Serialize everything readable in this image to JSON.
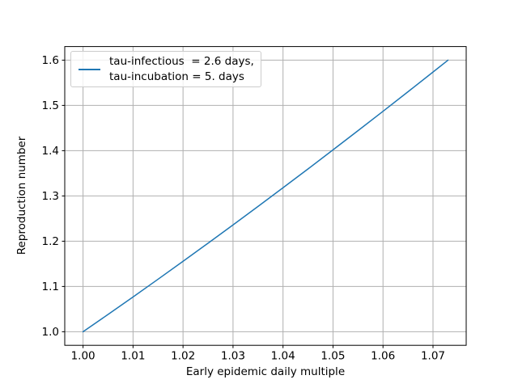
{
  "chart_data": {
    "type": "line",
    "title": "",
    "xlabel": "Early epidemic daily multiple",
    "ylabel": "Reproduction number",
    "xlim": [
      0.99634,
      1.07664
    ],
    "ylim": [
      0.97,
      1.63
    ],
    "xticks": [
      1.0,
      1.01,
      1.02,
      1.03,
      1.04,
      1.05,
      1.06,
      1.07
    ],
    "xtick_labels": [
      "1.00",
      "1.01",
      "1.02",
      "1.03",
      "1.04",
      "1.05",
      "1.06",
      "1.07"
    ],
    "yticks": [
      1.0,
      1.1,
      1.2,
      1.3,
      1.4,
      1.5,
      1.6
    ],
    "ytick_labels": [
      "1.0",
      "1.1",
      "1.2",
      "1.3",
      "1.4",
      "1.5",
      "1.6"
    ],
    "grid": true,
    "grid_color": "#b0b0b0",
    "spine_color": "#000000",
    "legend": {
      "position": "upper-left",
      "border_color": "#cccccc",
      "lines": [
        "tau-infectious  = 2.6 days,",
        "tau-incubation = 5. days"
      ]
    },
    "series": [
      {
        "name": "tau-infectious = 2.6 days, tau-incubation = 5. days",
        "color": "#1f77b4",
        "line_width": 1.5,
        "points": [
          [
            1.0,
            1.0
          ],
          [
            1.005,
            1.0382
          ],
          [
            1.01,
            1.0769
          ],
          [
            1.015,
            1.116
          ],
          [
            1.02,
            1.1556
          ],
          [
            1.025,
            1.1956
          ],
          [
            1.03,
            1.236
          ],
          [
            1.035,
            1.2768
          ],
          [
            1.04,
            1.3181
          ],
          [
            1.045,
            1.3597
          ],
          [
            1.05,
            1.4018
          ],
          [
            1.055,
            1.4442
          ],
          [
            1.06,
            1.487
          ],
          [
            1.065,
            1.5302
          ],
          [
            1.07,
            1.5737
          ],
          [
            1.073,
            1.6
          ]
        ]
      }
    ]
  }
}
